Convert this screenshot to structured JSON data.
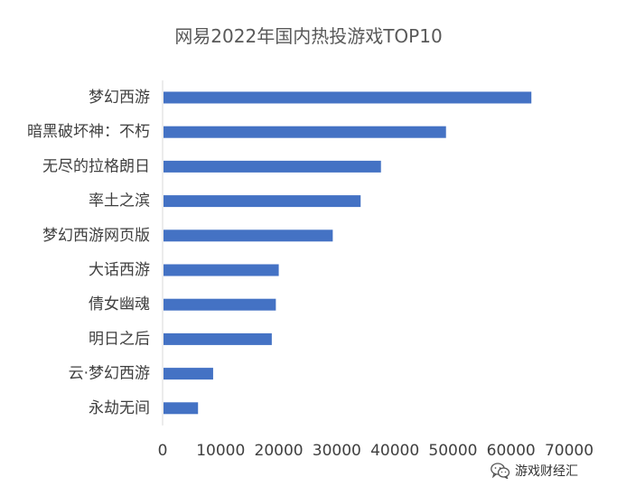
{
  "chart_data": {
    "type": "bar",
    "orientation": "horizontal",
    "title": "网易2022年国内热投游戏TOP10",
    "categories": [
      "梦幻西游",
      "暗黑破坏神：不朽",
      "无尽的拉格朗日",
      "率土之滨",
      "梦幻西游网页版",
      "大话西游",
      "倩女幽魂",
      "明日之后",
      "云·梦幻西游",
      "永劫无间"
    ],
    "values": [
      63500,
      48800,
      37600,
      34100,
      29300,
      20000,
      19500,
      18800,
      8700,
      6100
    ],
    "xlim": [
      0,
      70000
    ],
    "xticks": [
      0,
      10000,
      20000,
      30000,
      40000,
      50000,
      60000,
      70000
    ],
    "xlabel": "",
    "ylabel": "",
    "grid": false,
    "legend": "none",
    "bar_color": "#4472C4"
  },
  "watermark": {
    "text": "游戏财经汇",
    "icon": "wechat-icon"
  }
}
